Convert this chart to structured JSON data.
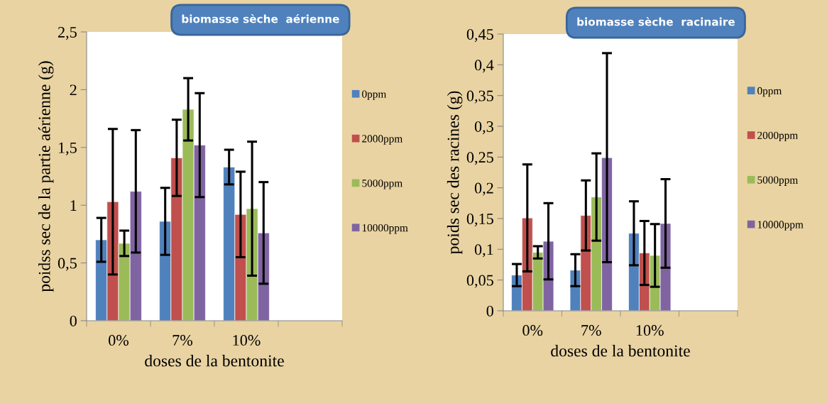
{
  "chart_data": [
    {
      "type": "bar",
      "title": "biomasse sèche  aérienne",
      "xlabel": "doses de la bentonite",
      "ylabel": "poidss sec de la partie aérienne (g)",
      "categories": [
        "0%",
        "7%",
        "10%",
        null
      ],
      "ylim": [
        0,
        2.5
      ],
      "yticks": [
        0,
        {
          "value": 0.5,
          "label": "0,5"
        },
        1,
        {
          "value": 1.5,
          "label": "1,5"
        },
        2,
        {
          "value": 2.5,
          "label": "2,5"
        }
      ],
      "grid": false,
      "legend": "right",
      "series": [
        {
          "name": "0ppm",
          "color": "#4f81bd",
          "values": [
            0.7,
            0.86,
            1.33,
            null
          ],
          "errors": [
            0.19,
            0.29,
            0.15,
            null
          ]
        },
        {
          "name": "2000ppm",
          "color": "#c0504d",
          "values": [
            1.03,
            1.41,
            0.92,
            null
          ],
          "errors": [
            0.63,
            0.33,
            0.37,
            null
          ]
        },
        {
          "name": "5000ppm",
          "color": "#9bbb59",
          "values": [
            0.67,
            1.83,
            0.97,
            null
          ],
          "errors": [
            0.11,
            0.27,
            0.58,
            null
          ]
        },
        {
          "name": "10000ppm",
          "color": "#8064a2",
          "values": [
            1.12,
            1.52,
            0.76,
            null
          ],
          "errors": [
            0.53,
            0.45,
            0.44,
            null
          ]
        }
      ]
    },
    {
      "type": "bar",
      "title": "biomasse sèche  racinaire",
      "xlabel": "doses de la bentonite",
      "ylabel": "poids sec des racines (g)",
      "categories": [
        "0%",
        "7%",
        "10%",
        null
      ],
      "ylim": [
        0,
        0.45
      ],
      "yticks": [
        0,
        {
          "value": 0.05,
          "label": "0,05"
        },
        {
          "value": 0.1,
          "label": "0,1"
        },
        {
          "value": 0.15,
          "label": "0,15"
        },
        {
          "value": 0.2,
          "label": "0,2"
        },
        {
          "value": 0.25,
          "label": "0,25"
        },
        {
          "value": 0.3,
          "label": "0,3"
        },
        {
          "value": 0.35,
          "label": "0,35"
        },
        {
          "value": 0.4,
          "label": "0,4"
        },
        {
          "value": 0.45,
          "label": "0,45"
        }
      ],
      "grid": false,
      "legend": "right",
      "series": [
        {
          "name": "0ppm",
          "color": "#4f81bd",
          "values": [
            0.058,
            0.066,
            0.126,
            null
          ],
          "errors": [
            0.018,
            0.026,
            0.052,
            null
          ]
        },
        {
          "name": "2000ppm",
          "color": "#c0504d",
          "values": [
            0.151,
            0.155,
            0.094,
            null
          ],
          "errors": [
            0.087,
            0.057,
            0.052,
            null
          ]
        },
        {
          "name": "5000ppm",
          "color": "#9bbb59",
          "values": [
            0.095,
            0.185,
            0.09,
            null
          ],
          "errors": [
            0.01,
            0.071,
            0.051,
            null
          ]
        },
        {
          "name": "10000ppm",
          "color": "#8064a2",
          "values": [
            0.113,
            0.249,
            0.142,
            null
          ],
          "errors": [
            0.062,
            0.17,
            0.072,
            null
          ]
        }
      ]
    }
  ]
}
